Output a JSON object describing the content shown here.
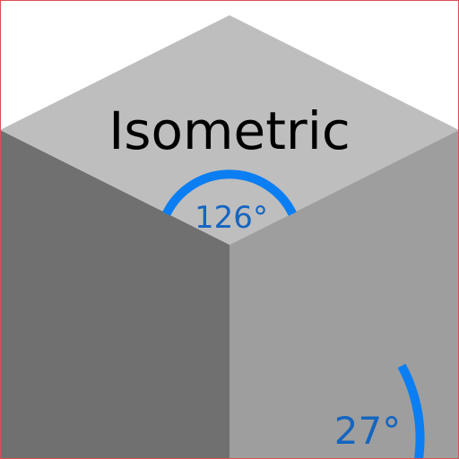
{
  "title": "Isometric",
  "angles": {
    "top_angle_label": "126°",
    "side_angle_label": "27°"
  },
  "colors": {
    "background": "#ffffff",
    "border": "#e05050",
    "top_face": "#bebebe",
    "left_face": "#707070",
    "right_face": "#9e9e9e",
    "arc": "#0a7ef2",
    "angle_text": "#1565c0",
    "title_text": "#000000"
  }
}
